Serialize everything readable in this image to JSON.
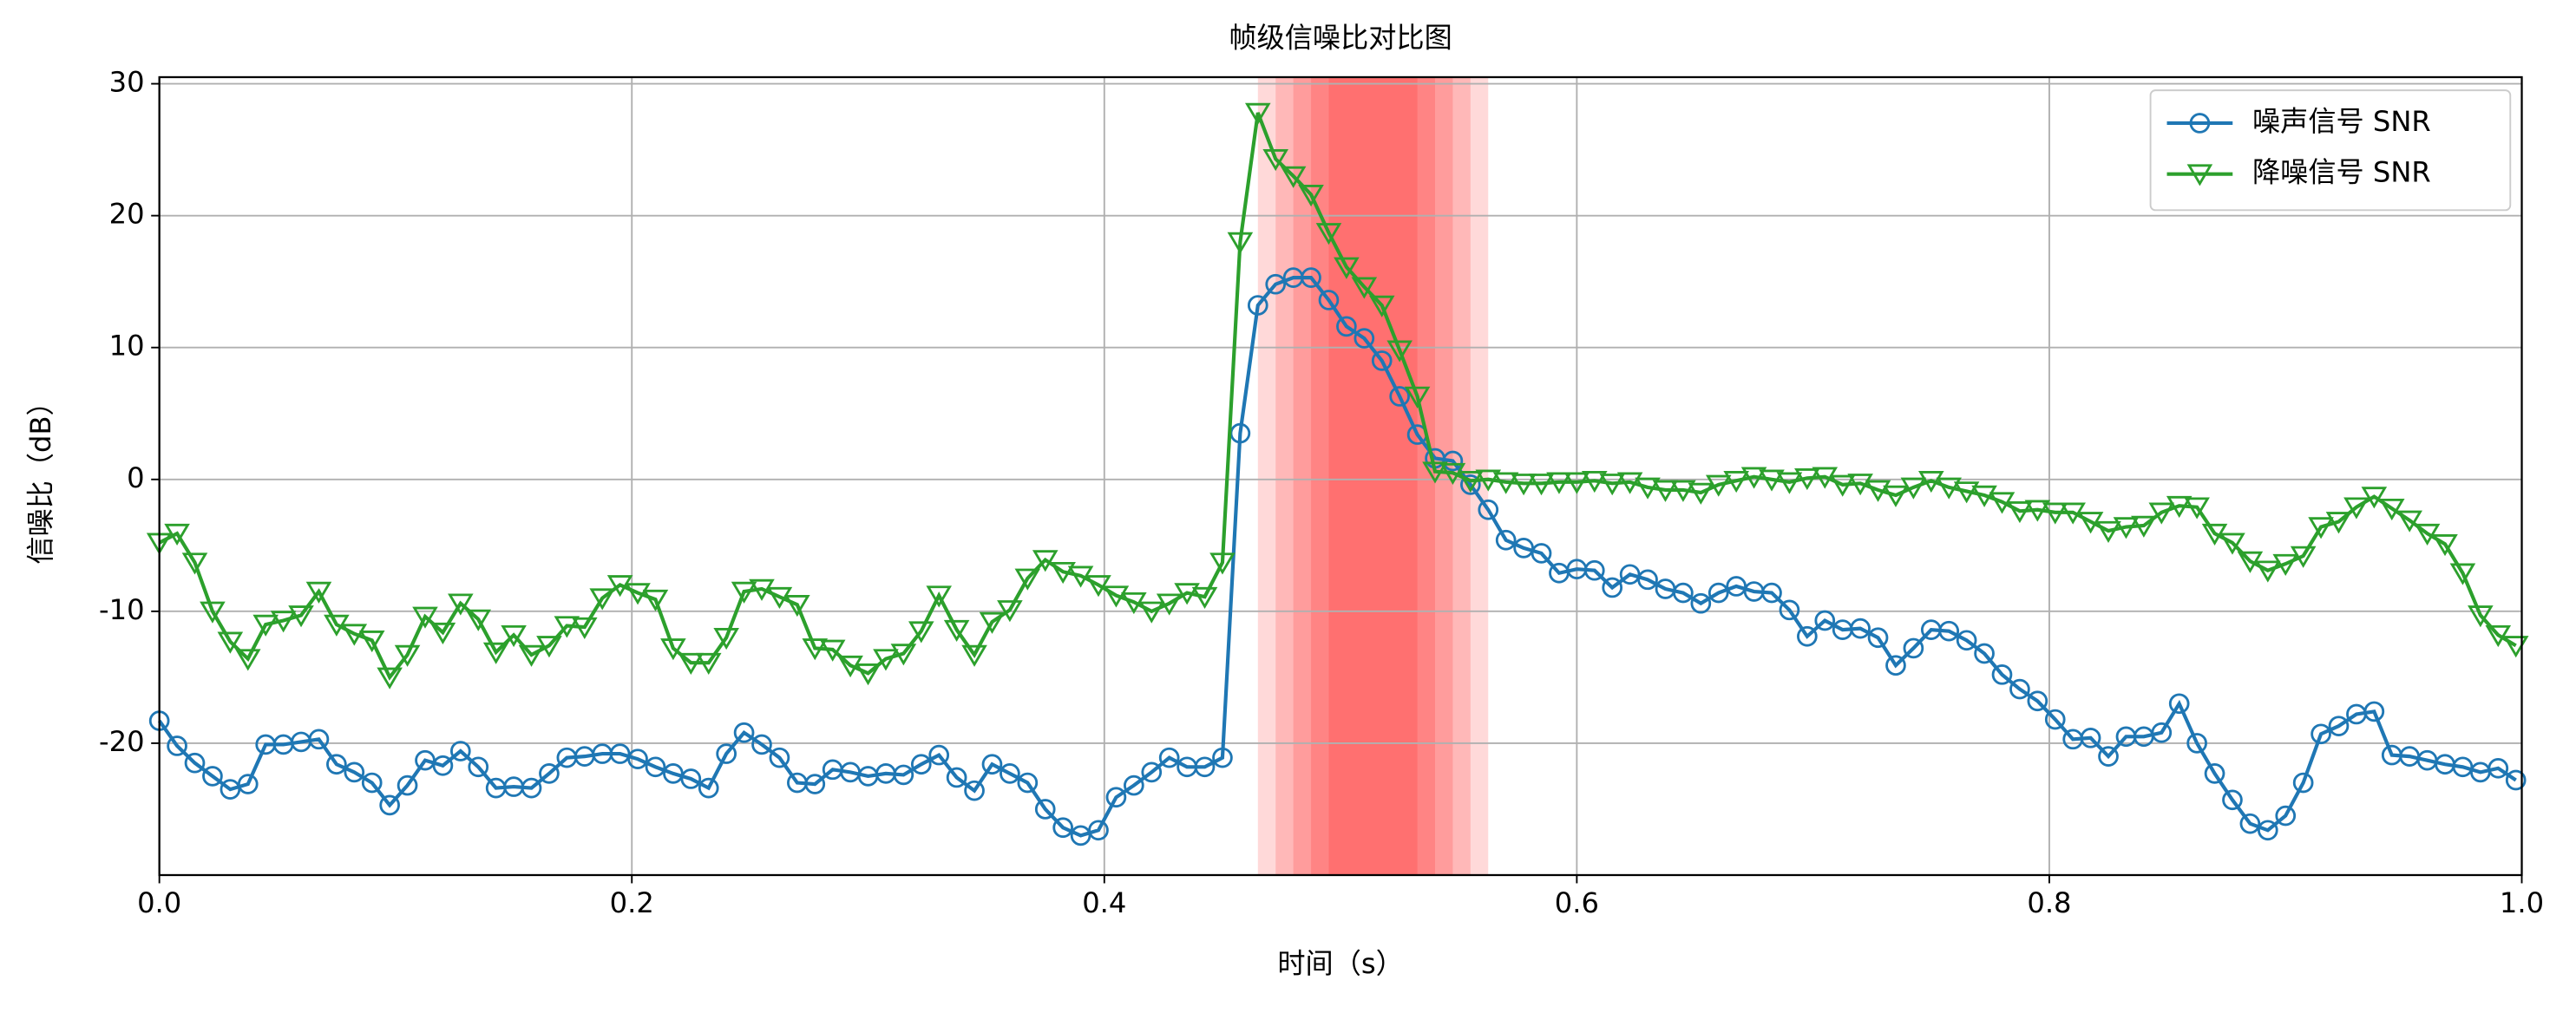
{
  "chart_data": {
    "type": "line",
    "title": "帧级信噪比对比图",
    "xlabel": "时间（s）",
    "ylabel": "信噪比（dB）",
    "xlim": [
      0,
      1
    ],
    "ylim": [
      -30,
      30.5
    ],
    "xticks": [
      {
        "value": 0,
        "label": "0.0"
      },
      0.2,
      0.4,
      0.6,
      0.8,
      {
        "value": 1,
        "label": "1.0"
      }
    ],
    "yticks": [
      -20,
      -10,
      0,
      10,
      20,
      30
    ],
    "grid": true,
    "legend": "upper right",
    "highlight": {
      "color": "#ff0000",
      "spans": [
        [
          0.465,
          0.5625
        ],
        [
          0.4725,
          0.555
        ],
        [
          0.48,
          0.5475
        ],
        [
          0.4875,
          0.54
        ],
        [
          0.495,
          0.5325
        ]
      ]
    },
    "x": [
      0,
      0.0075,
      0.015,
      0.0225,
      0.03,
      0.0375,
      0.045,
      0.0525,
      0.06,
      0.0675,
      0.075,
      0.0825,
      0.09,
      0.0975,
      0.105,
      0.1125,
      0.12,
      0.1275,
      0.135,
      0.1425,
      0.15,
      0.1575,
      0.165,
      0.1725,
      0.18,
      0.1875,
      0.195,
      0.2025,
      0.21,
      0.2175,
      0.225,
      0.2325,
      0.24,
      0.2475,
      0.255,
      0.2625,
      0.27,
      0.2775,
      0.285,
      0.2925,
      0.3,
      0.3075,
      0.315,
      0.3225,
      0.33,
      0.3375,
      0.345,
      0.3525,
      0.36,
      0.3675,
      0.375,
      0.3825,
      0.39,
      0.3975,
      0.405,
      0.4125,
      0.42,
      0.4275,
      0.435,
      0.4425,
      0.45,
      0.4575,
      0.465,
      0.4725,
      0.48,
      0.4875,
      0.495,
      0.5025,
      0.51,
      0.5175,
      0.525,
      0.5325,
      0.54,
      0.5475,
      0.555,
      0.5625,
      0.57,
      0.5775,
      0.585,
      0.5925,
      0.6,
      0.6075,
      0.615,
      0.6225,
      0.63,
      0.6375,
      0.645,
      0.6525,
      0.66,
      0.6675,
      0.675,
      0.6825,
      0.69,
      0.6975,
      0.705,
      0.7125,
      0.72,
      0.7275,
      0.735,
      0.7425,
      0.75,
      0.7575,
      0.765,
      0.7725,
      0.78,
      0.7875,
      0.795,
      0.8025,
      0.81,
      0.8175,
      0.825,
      0.8325,
      0.84,
      0.8475,
      0.855,
      0.8625,
      0.87,
      0.8775,
      0.885,
      0.8925,
      0.9,
      0.9075,
      0.915,
      0.9225,
      0.93,
      0.9375,
      0.945,
      0.9525,
      0.96,
      0.9675,
      0.975,
      0.9825,
      0.99,
      0.9975
    ],
    "series": [
      {
        "name": "噪声信号 SNR",
        "color": "#1f77b4",
        "marker": "circle",
        "values": [
          -18.3,
          -20.2,
          -21.5,
          -22.5,
          -23.5,
          -23.1,
          -20.1,
          -20.1,
          -19.9,
          -19.7,
          -21.6,
          -22.2,
          -23.0,
          -24.7,
          -23.2,
          -21.3,
          -21.7,
          -20.6,
          -21.8,
          -23.4,
          -23.3,
          -23.4,
          -22.3,
          -21.1,
          -21.0,
          -20.8,
          -20.8,
          -21.2,
          -21.8,
          -22.3,
          -22.7,
          -23.4,
          -20.8,
          -19.2,
          -20.1,
          -21.1,
          -23.0,
          -23.1,
          -22.0,
          -22.2,
          -22.5,
          -22.3,
          -22.4,
          -21.6,
          -20.9,
          -22.6,
          -23.6,
          -21.6,
          -22.3,
          -23.0,
          -25.0,
          -26.4,
          -27.0,
          -26.6,
          -24.1,
          -23.2,
          -22.2,
          -21.1,
          -21.8,
          -21.8,
          -21.1,
          3.5,
          13.2,
          14.8,
          15.3,
          15.3,
          13.6,
          11.6,
          10.7,
          9.0,
          6.3,
          3.4,
          1.6,
          1.4,
          -0.4,
          -2.3,
          -4.6,
          -5.2,
          -5.6,
          -7.1,
          -6.8,
          -6.9,
          -8.2,
          -7.2,
          -7.6,
          -8.3,
          -8.6,
          -9.4,
          -8.6,
          -8.1,
          -8.5,
          -8.6,
          -9.9,
          -11.9,
          -10.7,
          -11.4,
          -11.3,
          -12.0,
          -14.1,
          -12.8,
          -11.4,
          -11.5,
          -12.2,
          -13.2,
          -14.8,
          -15.9,
          -16.8,
          -18.2,
          -19.7,
          -19.6,
          -21.0,
          -19.5,
          -19.5,
          -19.2,
          -17.0,
          -20.0,
          -22.3,
          -24.3,
          -26.1,
          -26.6,
          -25.5,
          -23.0,
          -19.3,
          -18.7,
          -17.8,
          -17.6,
          -20.9,
          -21.0,
          -21.3,
          -21.6,
          -21.8,
          -22.2,
          -21.9,
          -22.8
        ]
      },
      {
        "name": "降噪信号 SNR",
        "color": "#2ca02c",
        "marker": "triangle-down",
        "values": [
          -4.8,
          -4.1,
          -6.3,
          -10.0,
          -12.3,
          -13.6,
          -11.0,
          -10.7,
          -10.3,
          -8.5,
          -11.0,
          -11.7,
          -12.2,
          -15.0,
          -13.3,
          -10.4,
          -11.6,
          -9.4,
          -10.6,
          -13.1,
          -11.8,
          -13.3,
          -12.6,
          -11.1,
          -11.2,
          -9.0,
          -8.0,
          -8.6,
          -9.1,
          -12.8,
          -13.9,
          -13.9,
          -12.0,
          -8.5,
          -8.3,
          -8.9,
          -9.5,
          -12.8,
          -12.9,
          -14.1,
          -14.7,
          -13.6,
          -13.2,
          -11.5,
          -8.8,
          -11.4,
          -13.3,
          -10.8,
          -9.9,
          -7.5,
          -6.1,
          -7.0,
          -7.3,
          -8.0,
          -8.8,
          -9.3,
          -10.0,
          -9.4,
          -8.6,
          -8.9,
          -6.3,
          18.0,
          27.8,
          24.3,
          23.0,
          21.6,
          18.7,
          16.1,
          14.6,
          13.2,
          9.8,
          6.3,
          0.6,
          0.5,
          -0.1,
          0.0,
          -0.2,
          -0.3,
          -0.3,
          -0.2,
          -0.2,
          -0.1,
          -0.3,
          -0.2,
          -0.6,
          -0.8,
          -0.8,
          -1.0,
          -0.4,
          -0.1,
          0.2,
          0.0,
          -0.2,
          0.1,
          0.2,
          -0.4,
          -0.3,
          -0.8,
          -1.2,
          -0.6,
          -0.1,
          -0.6,
          -0.9,
          -1.2,
          -1.7,
          -2.4,
          -2.3,
          -2.5,
          -2.5,
          -3.2,
          -3.9,
          -3.6,
          -3.5,
          -2.5,
          -2.0,
          -2.1,
          -4.1,
          -4.8,
          -6.2,
          -6.9,
          -6.4,
          -5.8,
          -3.6,
          -3.2,
          -2.1,
          -1.3,
          -2.2,
          -3.1,
          -4.1,
          -4.9,
          -7.1,
          -10.3,
          -11.8,
          -12.6
        ]
      }
    ]
  }
}
